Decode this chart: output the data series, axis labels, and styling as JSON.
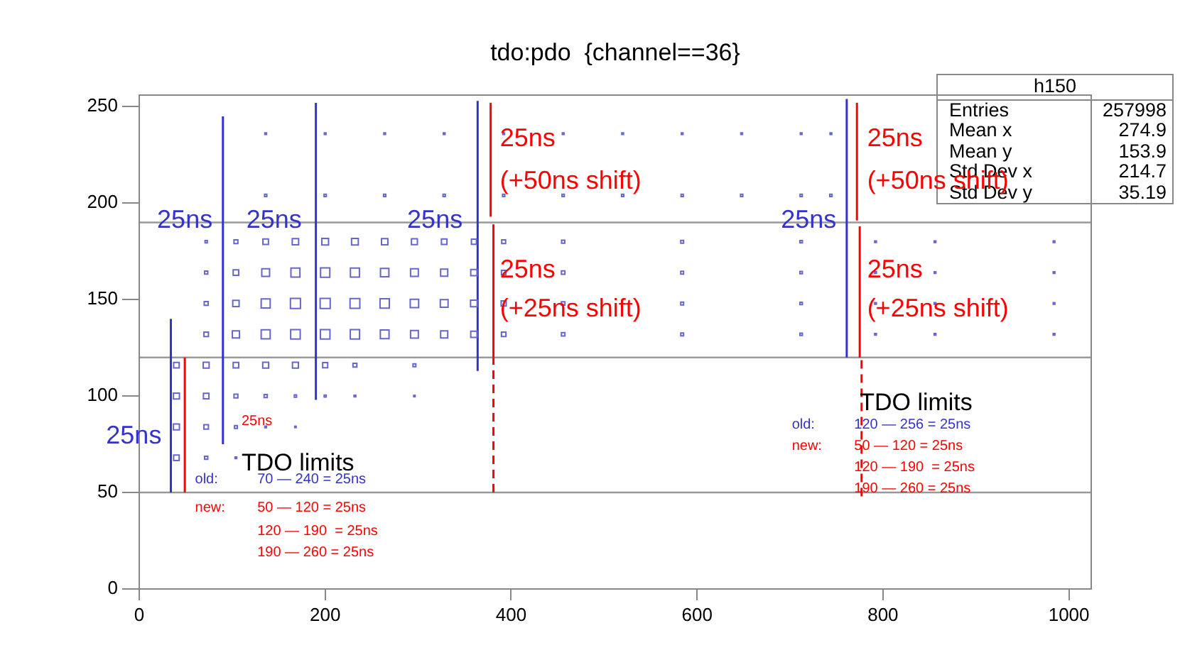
{
  "chart_data": {
    "type": "bubble",
    "title": "tdo:pdo  {channel==36}",
    "marker": "square",
    "grid": false,
    "legend": false,
    "xlim": [
      0,
      1024
    ],
    "ylim": [
      0,
      256
    ],
    "xticks": [
      0,
      200,
      400,
      600,
      800,
      1000
    ],
    "yticks": [
      0,
      50,
      100,
      150,
      200,
      250
    ],
    "series": [
      {
        "type": "bubble",
        "color": "#6666cc",
        "x": [
          72,
          104,
          136,
          168,
          200,
          232,
          264,
          296,
          328,
          360,
          392,
          456,
          584,
          712,
          792,
          856,
          984,
          72,
          104,
          136,
          168,
          200,
          232,
          264,
          296,
          328,
          360,
          392,
          456,
          584,
          712,
          792,
          856,
          984,
          72,
          104,
          136,
          168,
          200,
          232,
          264,
          296,
          328,
          360,
          392,
          456,
          584,
          712,
          792,
          856,
          984,
          72,
          104,
          136,
          168,
          200,
          232,
          264,
          296,
          328,
          360,
          392,
          456,
          584,
          712,
          792,
          856,
          984,
          40,
          72,
          104,
          136,
          168,
          200,
          232,
          296,
          40,
          72,
          104,
          136,
          168,
          200,
          232,
          296,
          40,
          72,
          104,
          136,
          168,
          40,
          72,
          104,
          136,
          200,
          264,
          328,
          392,
          456,
          520,
          584,
          648,
          712,
          744,
          136,
          200,
          264,
          328,
          392,
          456,
          520,
          584,
          648,
          712,
          744
        ],
        "values": [
          180,
          180,
          180,
          180,
          180,
          180,
          180,
          180,
          180,
          180,
          180,
          180,
          180,
          180,
          180,
          180,
          180,
          164,
          164,
          164,
          164,
          164,
          164,
          164,
          164,
          164,
          164,
          164,
          164,
          164,
          164,
          164,
          164,
          164,
          148,
          148,
          148,
          148,
          148,
          148,
          148,
          148,
          148,
          148,
          148,
          148,
          148,
          148,
          148,
          148,
          148,
          132,
          132,
          132,
          132,
          132,
          132,
          132,
          132,
          132,
          132,
          132,
          132,
          132,
          132,
          132,
          132,
          132,
          116,
          116,
          116,
          116,
          116,
          116,
          116,
          116,
          100,
          100,
          100,
          100,
          100,
          100,
          100,
          100,
          84,
          84,
          84,
          84,
          84,
          68,
          68,
          68,
          236,
          236,
          236,
          236,
          236,
          236,
          236,
          236,
          236,
          236,
          236,
          204,
          204,
          204,
          204,
          204,
          204,
          204,
          204,
          204,
          204,
          204
        ],
        "sizes": [
          0.05,
          0.15,
          0.3,
          0.4,
          0.45,
          0.45,
          0.4,
          0.35,
          0.3,
          0.25,
          0.15,
          0.1,
          0.08,
          0.06,
          0.03,
          0.03,
          0.03,
          0.1,
          0.3,
          0.6,
          0.8,
          0.85,
          0.8,
          0.7,
          0.6,
          0.5,
          0.4,
          0.2,
          0.12,
          0.08,
          0.06,
          0.03,
          0.03,
          0.03,
          0.15,
          0.4,
          0.8,
          1,
          1,
          0.95,
          0.85,
          0.7,
          0.6,
          0.45,
          0.25,
          0.12,
          0.08,
          0.06,
          0.03,
          0.03,
          0.03,
          0.2,
          0.5,
          0.8,
          0.9,
          0.9,
          0.85,
          0.75,
          0.6,
          0.5,
          0.4,
          0.2,
          0.12,
          0.08,
          0.06,
          0.03,
          0.03,
          0.03,
          0.3,
          0.35,
          0.3,
          0.35,
          0.35,
          0.25,
          0.15,
          0.08,
          0.35,
          0.3,
          0.15,
          0.1,
          0.05,
          0.04,
          0.03,
          0.02,
          0.35,
          0.2,
          0.08,
          0.03,
          0.02,
          0.3,
          0.1,
          0.03,
          0.03,
          0.03,
          0.03,
          0.03,
          0.03,
          0.03,
          0.03,
          0.03,
          0.03,
          0.03,
          0.03,
          0.05,
          0.05,
          0.05,
          0.05,
          0.05,
          0.05,
          0.05,
          0.05,
          0.05,
          0.05,
          0.05
        ]
      },
      {
        "type": "line",
        "marker": "none",
        "color": "#3333cc",
        "x": [
          34,
          34
        ],
        "values": [
          50,
          140
        ]
      },
      {
        "type": "line",
        "marker": "none",
        "color": "#3333cc",
        "x": [
          90,
          90
        ],
        "values": [
          75,
          245
        ]
      },
      {
        "type": "line",
        "marker": "none",
        "color": "#3333cc",
        "x": [
          190,
          190
        ],
        "values": [
          98,
          252
        ]
      },
      {
        "type": "line",
        "marker": "none",
        "color": "#3333cc",
        "x": [
          364,
          364
        ],
        "values": [
          113,
          253
        ]
      },
      {
        "type": "line",
        "marker": "none",
        "color": "#3333cc",
        "x": [
          761,
          761
        ],
        "values": [
          120,
          254
        ]
      },
      {
        "type": "line",
        "marker": "none",
        "color": "#ff0000",
        "x": [
          49,
          49
        ],
        "values": [
          50,
          120
        ]
      },
      {
        "type": "line",
        "marker": "none",
        "color": "#ff0000",
        "x": [
          378,
          378
        ],
        "values": [
          193,
          252
        ]
      },
      {
        "type": "line",
        "marker": "none",
        "color": "#ff0000",
        "x": [
          381,
          381
        ],
        "values": [
          120,
          189
        ]
      },
      {
        "type": "line",
        "marker": "none",
        "color": "#ff0000",
        "x": [
          381,
          381
        ],
        "values": [
          50,
          120
        ],
        "line_style": "dashed"
      },
      {
        "type": "line",
        "marker": "none",
        "color": "#ff0000",
        "x": [
          772,
          772
        ],
        "values": [
          191,
          252
        ]
      },
      {
        "type": "line",
        "marker": "none",
        "color": "#ff0000",
        "x": [
          775,
          775
        ],
        "values": [
          120,
          188
        ]
      },
      {
        "type": "line",
        "marker": "none",
        "color": "#ff0000",
        "x": [
          777,
          777
        ],
        "values": [
          48,
          120
        ],
        "line_style": "dashed"
      }
    ],
    "ref_lines": [
      {
        "axis": "y",
        "value": 50,
        "color": "#999999"
      },
      {
        "axis": "y",
        "value": 120,
        "color": "#999999"
      },
      {
        "axis": "y",
        "value": 190,
        "color": "#999999"
      }
    ],
    "annotations": [
      "25ns",
      "25ns",
      "25ns",
      "25ns",
      "25ns",
      "25ns",
      "(+50ns shift)",
      "25ns",
      "(+25ns shift)",
      "25ns",
      "(+50ns shift)",
      "25ns",
      "(+25ns shift)",
      "25ns",
      "TDO limits",
      "old:",
      "70 — 240 = 25ns",
      "new:",
      "50 — 120 = 25ns",
      "120 — 190  = 25ns",
      "190 — 260 = 25ns",
      "TDO limits",
      "old:",
      "120 — 256 = 25ns",
      "new:",
      "50 — 120 = 25ns",
      "120 — 190  = 25ns",
      "190 — 260 = 25ns",
      "h150",
      "Entries",
      "257998",
      "Mean x",
      "274.9",
      "Mean y",
      "153.9",
      "Std Dev x",
      "214.7",
      "Std Dev y",
      "35.19"
    ]
  }
}
